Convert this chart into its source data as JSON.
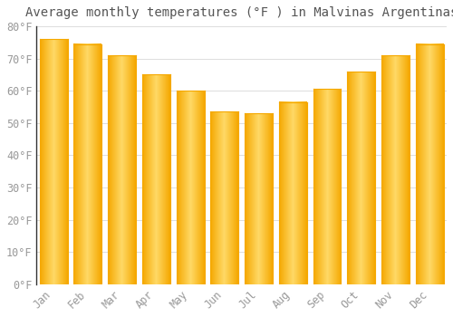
{
  "title": "Average monthly temperatures (°F ) in Malvinas Argentinas",
  "months": [
    "Jan",
    "Feb",
    "Mar",
    "Apr",
    "May",
    "Jun",
    "Jul",
    "Aug",
    "Sep",
    "Oct",
    "Nov",
    "Dec"
  ],
  "values": [
    76,
    74.5,
    71,
    65,
    60,
    53.5,
    53,
    56.5,
    60.5,
    66,
    71,
    74.5
  ],
  "bar_color_center": "#FFD966",
  "bar_color_edge": "#F5A800",
  "background_color": "#ffffff",
  "ylim": [
    0,
    80
  ],
  "yticks": [
    0,
    10,
    20,
    30,
    40,
    50,
    60,
    70,
    80
  ],
  "ytick_labels": [
    "0°F",
    "10°F",
    "20°F",
    "30°F",
    "40°F",
    "50°F",
    "60°F",
    "70°F",
    "80°F"
  ],
  "title_fontsize": 10,
  "tick_fontsize": 8.5,
  "font_family": "monospace",
  "grid_color": "#dddddd",
  "tick_color": "#999999",
  "title_color": "#555555"
}
